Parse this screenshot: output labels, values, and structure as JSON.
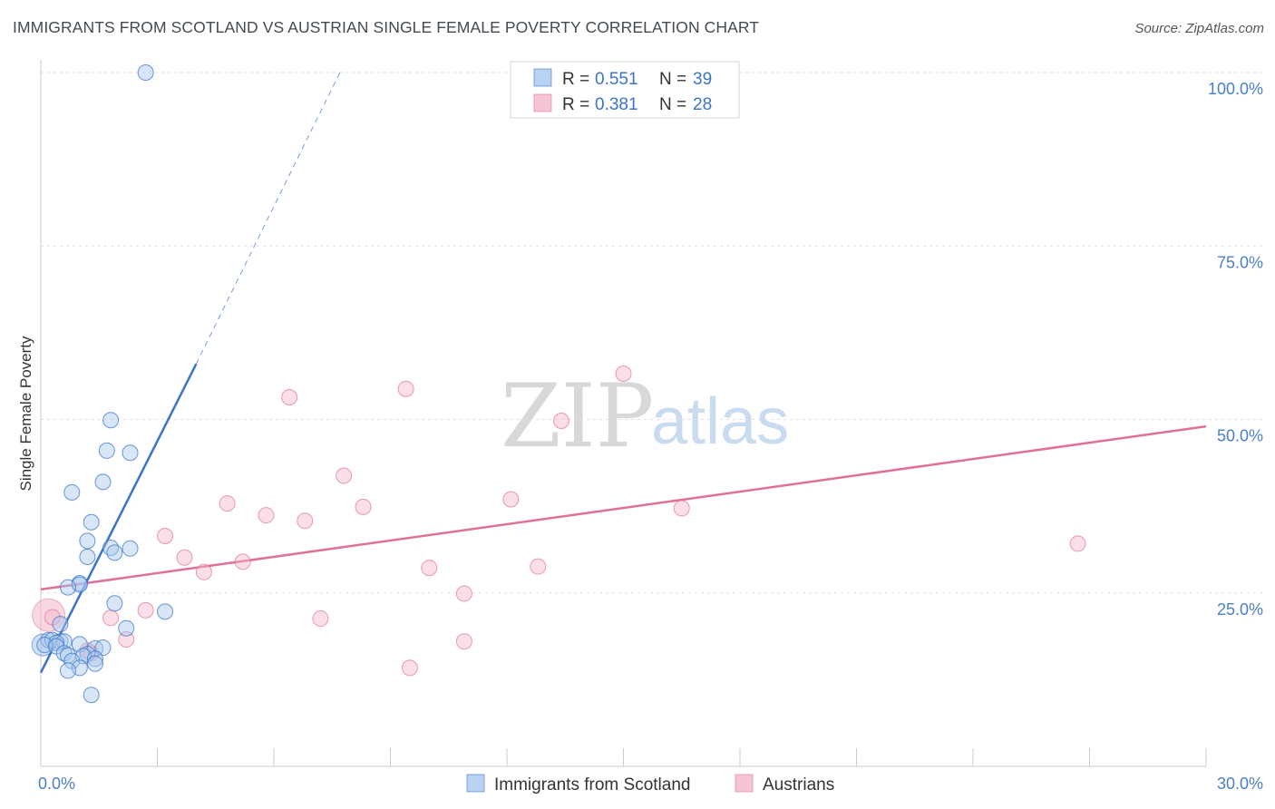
{
  "title": "IMMIGRANTS FROM SCOTLAND VS AUSTRIAN SINGLE FEMALE POVERTY CORRELATION CHART",
  "source": "Source: ZipAtlas.com",
  "watermark": {
    "zip": "ZIP",
    "atlas": "atlas"
  },
  "colors": {
    "blue": "#3a74c9",
    "blue_fill": "#a9c7ee",
    "pink": "#e0709a",
    "pink_fill": "#f4b7cb",
    "grid": "#dddddd"
  },
  "legend": {
    "rows": [
      {
        "r_label": "R =",
        "r_value": "0.551",
        "n_label": "N =",
        "n_value": "39"
      },
      {
        "r_label": "R =",
        "r_value": "0.381",
        "n_label": "N =",
        "n_value": "28"
      }
    ]
  },
  "chart_data": {
    "type": "scatter",
    "title": "IMMIGRANTS FROM SCOTLAND VS AUSTRIAN SINGLE FEMALE POVERTY CORRELATION CHART",
    "xlabel": "",
    "ylabel": "Single Female Poverty",
    "xlim": [
      0,
      30
    ],
    "ylim": [
      0,
      100
    ],
    "x_tick_labels": [
      "0.0%",
      "30.0%"
    ],
    "y_tick_labels": [
      "100.0%",
      "75.0%",
      "50.0%",
      "25.0%"
    ],
    "y_ticks": [
      100,
      75,
      50,
      25
    ],
    "legend_position": "bottom-center",
    "series": [
      {
        "name": "Immigrants from Scotland",
        "color": "#3a74c9",
        "points": [
          [
            2.7,
            100
          ],
          [
            1.8,
            49.9
          ],
          [
            1.7,
            45.5
          ],
          [
            2.3,
            45.2
          ],
          [
            1.6,
            41
          ],
          [
            0.8,
            39.5
          ],
          [
            1.3,
            35.2
          ],
          [
            1.2,
            32.5
          ],
          [
            1.8,
            31.5
          ],
          [
            2.3,
            31.4
          ],
          [
            1.9,
            30.8
          ],
          [
            1.2,
            30.2
          ],
          [
            1.0,
            26.4
          ],
          [
            1.0,
            26.2
          ],
          [
            0.7,
            25.8
          ],
          [
            1.9,
            23.5
          ],
          [
            3.2,
            22.3
          ],
          [
            0.5,
            20.5
          ],
          [
            2.2,
            19.9
          ],
          [
            0.2,
            18.2
          ],
          [
            0.3,
            18.2
          ],
          [
            0.5,
            18.0
          ],
          [
            0.6,
            18.0
          ],
          [
            0.4,
            17.8
          ],
          [
            1.0,
            17.6
          ],
          [
            0.1,
            17.5
          ],
          [
            0.4,
            17.3
          ],
          [
            1.4,
            17.0
          ],
          [
            1.6,
            17.1
          ],
          [
            0.6,
            16.3
          ],
          [
            0.7,
            16.0
          ],
          [
            1.2,
            16.2
          ],
          [
            1.1,
            15.9
          ],
          [
            1.4,
            15.5
          ],
          [
            0.8,
            15.2
          ],
          [
            1.4,
            14.8
          ],
          [
            1.0,
            14.2
          ],
          [
            0.7,
            13.8
          ],
          [
            1.3,
            10.3
          ]
        ],
        "trend": {
          "x0": 0.0,
          "y0": 13.5,
          "x1": 4.0,
          "y1": 58.0,
          "dashed_x_end": 7.7,
          "dashed_y_end": 100
        }
      },
      {
        "name": "Austrians",
        "color": "#e0709a",
        "points": [
          [
            15.0,
            56.6
          ],
          [
            9.4,
            54.4
          ],
          [
            6.4,
            53.2
          ],
          [
            13.4,
            49.8
          ],
          [
            7.8,
            41.9
          ],
          [
            12.1,
            38.5
          ],
          [
            4.8,
            37.9
          ],
          [
            8.3,
            37.4
          ],
          [
            16.5,
            37.2
          ],
          [
            5.8,
            36.2
          ],
          [
            6.8,
            35.4
          ],
          [
            3.2,
            33.2
          ],
          [
            26.7,
            32.1
          ],
          [
            3.7,
            30.1
          ],
          [
            5.2,
            29.5
          ],
          [
            10.0,
            28.6
          ],
          [
            12.8,
            28.8
          ],
          [
            4.2,
            28.0
          ],
          [
            10.9,
            24.9
          ],
          [
            0.3,
            21.5
          ],
          [
            2.7,
            22.5
          ],
          [
            1.8,
            21.4
          ],
          [
            7.2,
            21.3
          ],
          [
            2.2,
            18.3
          ],
          [
            10.9,
            18.0
          ],
          [
            1.3,
            16.3
          ],
          [
            1.2,
            16.7
          ],
          [
            9.5,
            14.2
          ]
        ],
        "trend": {
          "x0": 0.0,
          "y0": 25.5,
          "x1": 30.0,
          "y1": 49.0
        }
      }
    ]
  }
}
